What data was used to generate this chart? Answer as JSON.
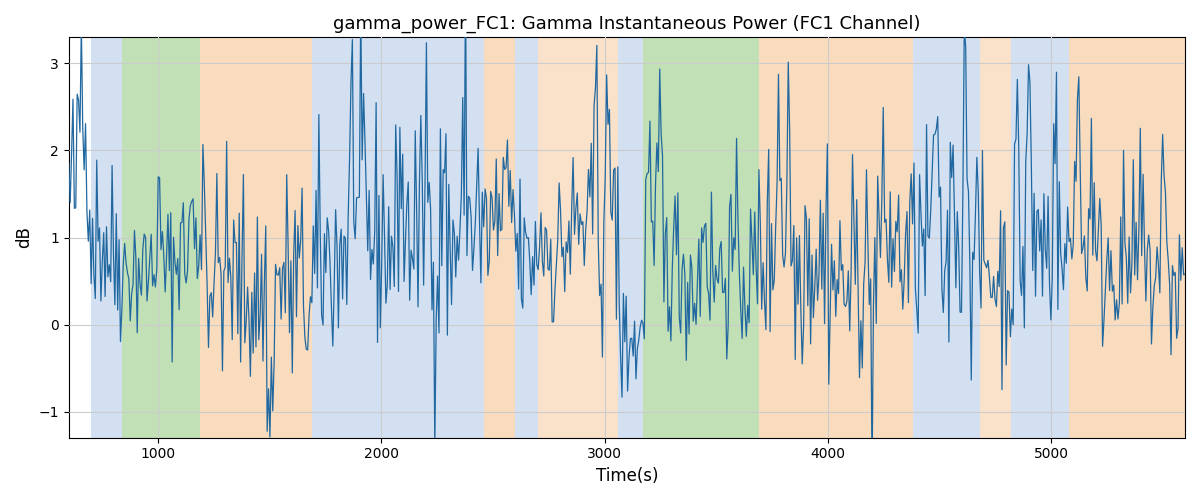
{
  "title": "gamma_power_FC1: Gamma Instantaneous Power (FC1 Channel)",
  "xlabel": "Time(s)",
  "ylabel": "dB",
  "xlim": [
    600,
    5600
  ],
  "ylim": [
    -1.3,
    3.3
  ],
  "yticks": [
    -1,
    0,
    1,
    2,
    3
  ],
  "xticks": [
    1000,
    2000,
    3000,
    4000,
    5000
  ],
  "line_color": "#2168a0",
  "regions": [
    {
      "xmin": 700,
      "xmax": 840,
      "color": "#adc8e8",
      "alpha": 0.55
    },
    {
      "xmin": 840,
      "xmax": 1190,
      "color": "#90c878",
      "alpha": 0.55
    },
    {
      "xmin": 1190,
      "xmax": 1690,
      "color": "#f5c08a",
      "alpha": 0.55
    },
    {
      "xmin": 1690,
      "xmax": 2460,
      "color": "#adc8e8",
      "alpha": 0.55
    },
    {
      "xmin": 2460,
      "xmax": 2600,
      "color": "#f5c08a",
      "alpha": 0.55
    },
    {
      "xmin": 2600,
      "xmax": 2700,
      "color": "#adc8e8",
      "alpha": 0.55
    },
    {
      "xmin": 2700,
      "xmax": 3060,
      "color": "#f5c08a",
      "alpha": 0.45
    },
    {
      "xmin": 3060,
      "xmax": 3170,
      "color": "#adc8e8",
      "alpha": 0.55
    },
    {
      "xmin": 3170,
      "xmax": 3690,
      "color": "#90c878",
      "alpha": 0.55
    },
    {
      "xmin": 3690,
      "xmax": 4380,
      "color": "#f5c08a",
      "alpha": 0.55
    },
    {
      "xmin": 4380,
      "xmax": 4680,
      "color": "#adc8e8",
      "alpha": 0.55
    },
    {
      "xmin": 4680,
      "xmax": 4820,
      "color": "#f5c08a",
      "alpha": 0.45
    },
    {
      "xmin": 4820,
      "xmax": 5080,
      "color": "#adc8e8",
      "alpha": 0.55
    },
    {
      "xmin": 5080,
      "xmax": 5600,
      "color": "#f5c08a",
      "alpha": 0.55
    }
  ],
  "figsize": [
    12.0,
    5.0
  ],
  "dpi": 100
}
